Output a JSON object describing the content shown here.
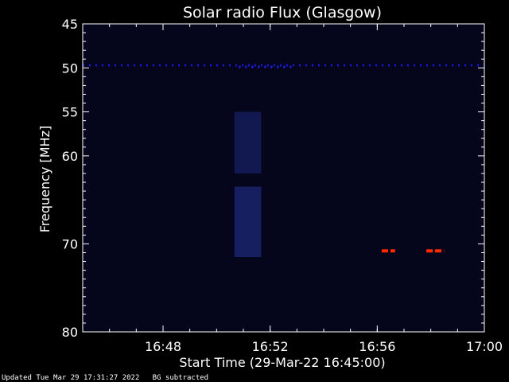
{
  "chart_data": {
    "type": "heatmap",
    "title": "Solar radio Flux (Glasgow)",
    "xlabel": "Start Time (29-Mar-22 16:45:00)",
    "ylabel": "Frequency [MHz]",
    "x_range": [
      "16:45:00",
      "17:00:00"
    ],
    "y_range": [
      45,
      80
    ],
    "x_ticks": [
      "16:48",
      "16:52",
      "16:56",
      "17:00"
    ],
    "y_ticks": [
      45,
      50,
      55,
      60,
      70,
      80
    ],
    "features": [
      {
        "kind": "interference_line",
        "frequency_mhz": 49.7,
        "start": "16:45:00",
        "end": "17:00:00",
        "color": "#1616d8"
      },
      {
        "kind": "interference_line",
        "frequency_mhz": 49.9,
        "start": "16:50:50",
        "end": "16:52:50",
        "color": "#2222ff"
      },
      {
        "kind": "broadband_band",
        "freq_range_mhz": [
          55,
          62
        ],
        "start": "16:50:40",
        "end": "16:51:40",
        "color": "#141c58"
      },
      {
        "kind": "broadband_band",
        "freq_range_mhz": [
          63.5,
          71.5
        ],
        "start": "16:50:40",
        "end": "16:51:40",
        "color": "#182468"
      },
      {
        "kind": "hot_spot",
        "frequency_mhz": 70.8,
        "start": "16:56:10",
        "end": "16:56:40",
        "color": "#ff2a00"
      },
      {
        "kind": "hot_spot",
        "frequency_mhz": 70.8,
        "start": "16:57:50",
        "end": "16:58:30",
        "color": "#ff2a00"
      }
    ]
  },
  "footer": {
    "updated": "Updated Tue Mar 29 17:31:27 2022",
    "note": "BG subtracted"
  },
  "colors": {
    "background": "#000000",
    "plot_area": "#05051c",
    "axis": "#ffffff"
  }
}
